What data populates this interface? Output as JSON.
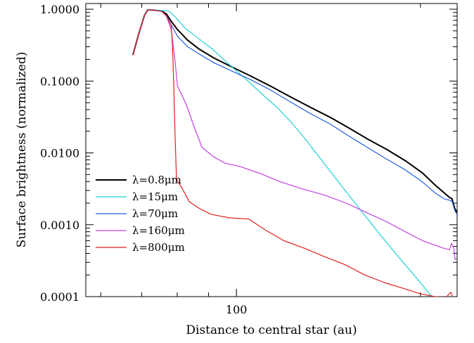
{
  "chart_data": {
    "type": "line",
    "title": "",
    "xlabel": "Distance to central star (au)",
    "ylabel": "Surface brightness (normalized)",
    "xscale": "log",
    "yscale": "log",
    "xlim": [
      56.7,
      229.6
    ],
    "ylim": [
      0.0001,
      1.2
    ],
    "x_ticks": [
      {
        "value": 100,
        "label": "100"
      }
    ],
    "y_ticks": [
      {
        "value": 1.0,
        "label": "1.0000"
      },
      {
        "value": 0.1,
        "label": "0.1000"
      },
      {
        "value": 0.01,
        "label": "0.0100"
      },
      {
        "value": 0.001,
        "label": "0.0010"
      },
      {
        "value": 0.0001,
        "label": "0.0001"
      }
    ],
    "grid": false,
    "legend": {
      "position": "bottom-left"
    },
    "series": [
      {
        "name": "λ=0.8μm",
        "color": "#000000",
        "width": 2,
        "points": [
          [
            67.7,
            0.23
          ],
          [
            69.2,
            0.45
          ],
          [
            70.7,
            0.82
          ],
          [
            71.6,
            0.98
          ],
          [
            73.3,
            0.97
          ],
          [
            75.5,
            0.94
          ],
          [
            76.8,
            0.86
          ],
          [
            78.2,
            0.68
          ],
          [
            80.1,
            0.52
          ],
          [
            83.2,
            0.37
          ],
          [
            86.8,
            0.28
          ],
          [
            91.8,
            0.21
          ],
          [
            97.9,
            0.16
          ],
          [
            105.4,
            0.118
          ],
          [
            113.7,
            0.085
          ],
          [
            122.2,
            0.061
          ],
          [
            131.5,
            0.044
          ],
          [
            142.6,
            0.031
          ],
          [
            153.0,
            0.022
          ],
          [
            164.1,
            0.0155
          ],
          [
            176.1,
            0.0112
          ],
          [
            188.9,
            0.0078
          ],
          [
            201.8,
            0.0052
          ],
          [
            211.1,
            0.0036
          ],
          [
            218.5,
            0.0028
          ],
          [
            223.1,
            0.0024
          ],
          [
            225.3,
            0.0023
          ],
          [
            226.3,
            0.00195
          ],
          [
            227.8,
            0.00165
          ],
          [
            229.5,
            0.0015
          ]
        ]
      },
      {
        "name": "λ=15μm",
        "color": "#22d0d0",
        "width": 1.2,
        "points": [
          [
            67.7,
            0.23
          ],
          [
            69.2,
            0.45
          ],
          [
            70.7,
            0.85
          ],
          [
            71.6,
            0.99
          ],
          [
            73.3,
            0.98
          ],
          [
            75.5,
            0.96
          ],
          [
            77.5,
            0.94
          ],
          [
            79.4,
            0.78
          ],
          [
            82.3,
            0.55
          ],
          [
            86.4,
            0.4
          ],
          [
            91.3,
            0.28
          ],
          [
            97.3,
            0.17
          ],
          [
            103.8,
            0.105
          ],
          [
            110.1,
            0.066
          ],
          [
            116.5,
            0.043
          ],
          [
            122.8,
            0.027
          ],
          [
            129.3,
            0.016
          ],
          [
            136.5,
            0.0088
          ],
          [
            144.8,
            0.0046
          ],
          [
            153.7,
            0.0024
          ],
          [
            163.3,
            0.00125
          ],
          [
            173.7,
            0.00065
          ],
          [
            185.0,
            0.00034
          ],
          [
            197.2,
            0.00018
          ],
          [
            210.4,
            9.2e-05
          ],
          [
            224.3,
            4.7e-05
          ]
        ]
      },
      {
        "name": "λ=70μm",
        "color": "#2060e0",
        "width": 1.2,
        "points": [
          [
            67.7,
            0.23
          ],
          [
            69.2,
            0.45
          ],
          [
            70.7,
            0.82
          ],
          [
            71.6,
            0.98
          ],
          [
            73.3,
            0.97
          ],
          [
            75.5,
            0.93
          ],
          [
            76.8,
            0.82
          ],
          [
            78.2,
            0.61
          ],
          [
            80.1,
            0.42
          ],
          [
            83.2,
            0.3
          ],
          [
            86.8,
            0.24
          ],
          [
            91.8,
            0.18
          ],
          [
            97.9,
            0.14
          ],
          [
            105.4,
            0.105
          ],
          [
            113.7,
            0.075
          ],
          [
            122.2,
            0.052
          ],
          [
            131.5,
            0.036
          ],
          [
            142.6,
            0.025
          ],
          [
            153.0,
            0.017
          ],
          [
            164.1,
            0.0118
          ],
          [
            176.1,
            0.0082
          ],
          [
            188.9,
            0.0058
          ],
          [
            201.8,
            0.0039
          ],
          [
            211.1,
            0.0028
          ],
          [
            218.5,
            0.0023
          ],
          [
            223.1,
            0.0022
          ],
          [
            225.3,
            0.0021
          ],
          [
            226.3,
            0.00185
          ],
          [
            227.8,
            0.00155
          ],
          [
            229.5,
            0.0014
          ]
        ]
      },
      {
        "name": "λ=160μm",
        "color": "#c040e0",
        "width": 1.2,
        "points": [
          [
            67.7,
            0.23
          ],
          [
            69.2,
            0.45
          ],
          [
            70.7,
            0.82
          ],
          [
            71.6,
            0.98
          ],
          [
            73.3,
            0.97
          ],
          [
            75.5,
            0.93
          ],
          [
            76.8,
            0.81
          ],
          [
            78.2,
            0.52
          ],
          [
            79.2,
            0.22
          ],
          [
            80.1,
            0.085
          ],
          [
            81.7,
            0.06
          ],
          [
            83.2,
            0.042
          ],
          [
            84.8,
            0.026
          ],
          [
            87.8,
            0.012
          ],
          [
            91.8,
            0.0088
          ],
          [
            95.8,
            0.0072
          ],
          [
            101.8,
            0.0064
          ],
          [
            109.2,
            0.0052
          ],
          [
            117.6,
            0.004
          ],
          [
            127.3,
            0.0032
          ],
          [
            139.2,
            0.0026
          ],
          [
            151.1,
            0.002
          ],
          [
            164.1,
            0.00145
          ],
          [
            176.1,
            0.0011
          ],
          [
            188.9,
            0.0008
          ],
          [
            201.8,
            0.0006
          ],
          [
            211.1,
            0.00052
          ],
          [
            218.5,
            0.00047
          ],
          [
            223.1,
            0.00045
          ],
          [
            224.8,
            0.00055
          ],
          [
            226.8,
            0.00047
          ],
          [
            227.8,
            0.00033
          ],
          [
            229.5,
            0.00034
          ]
        ]
      },
      {
        "name": "λ=800μm",
        "color": "#e02020",
        "width": 1.2,
        "points": [
          [
            67.7,
            0.23
          ],
          [
            69.2,
            0.45
          ],
          [
            70.7,
            0.82
          ],
          [
            71.6,
            0.98
          ],
          [
            73.3,
            0.97
          ],
          [
            75.5,
            0.93
          ],
          [
            76.8,
            0.8
          ],
          [
            78.2,
            0.6
          ],
          [
            78.6,
            0.3
          ],
          [
            79.0,
            0.08
          ],
          [
            79.4,
            0.015
          ],
          [
            79.8,
            0.0043
          ],
          [
            81.7,
            0.0031
          ],
          [
            83.7,
            0.0021
          ],
          [
            86.8,
            0.0017
          ],
          [
            90.8,
            0.0014
          ],
          [
            97.3,
            0.00125
          ],
          [
            104.8,
            0.0012
          ],
          [
            111.4,
            0.00085
          ],
          [
            119.6,
            0.0006
          ],
          [
            129.3,
            0.00047
          ],
          [
            139.2,
            0.00036
          ],
          [
            150.3,
            0.00028
          ],
          [
            162.1,
            0.0002
          ],
          [
            175.2,
            0.000155
          ],
          [
            187.8,
            0.00013
          ],
          [
            199.6,
            0.00011
          ],
          [
            211.1,
            0.0001
          ],
          [
            220.2,
            9.8e-05
          ],
          [
            224.3,
            0.000115
          ],
          [
            226.3,
            9.5e-05
          ]
        ]
      }
    ]
  }
}
